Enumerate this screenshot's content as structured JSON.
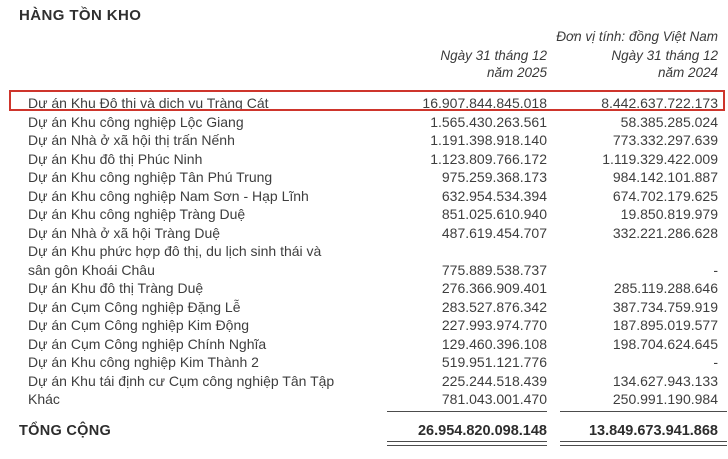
{
  "title": "HÀNG TỒN KHO",
  "unit_note": "Đơn vị tính: đồng Việt Nam",
  "columns": [
    {
      "line1": "Ngày 31 tháng 12",
      "line2": "năm 2025"
    },
    {
      "line1": "Ngày 31 tháng 12",
      "line2": "năm 2024"
    }
  ],
  "rows": [
    {
      "label": "Dự án Khu Đô thị và dịch vụ Tràng Cát",
      "v2025": "16.907.844.845.018",
      "v2024": "8.442.637.722.173",
      "highlighted": true
    },
    {
      "label": "Dự án Khu công nghiệp Lộc Giang",
      "v2025": "1.565.430.263.561",
      "v2024": "58.385.285.024"
    },
    {
      "label": "Dự án Nhà ở xã hội thị trấn Nếnh",
      "v2025": "1.191.398.918.140",
      "v2024": "773.332.297.639"
    },
    {
      "label": "Dự án Khu đô thị Phúc Ninh",
      "v2025": "1.123.809.766.172",
      "v2024": "1.119.329.422.009"
    },
    {
      "label": "Dự án Khu công nghiệp Tân Phú Trung",
      "v2025": "975.259.368.173",
      "v2024": "984.142.101.887"
    },
    {
      "label": "Dự án Khu công nghiệp Nam Sơn - Hạp Lĩnh",
      "v2025": "632.954.534.394",
      "v2024": "674.702.179.625"
    },
    {
      "label": "Dự án Khu công nghiệp Tràng Duệ",
      "v2025": "851.025.610.940",
      "v2024": "19.850.819.979"
    },
    {
      "label": "Dự án Nhà ở xã hội Tràng Duệ",
      "v2025": "487.619.454.707",
      "v2024": "332.221.286.628"
    },
    {
      "label": "Dự án Khu phức hợp đô thị, du lịch sinh thái và\nsân gôn Khoái Châu",
      "v2025": "775.889.538.737",
      "v2024": "-"
    },
    {
      "label": "Dự án Khu đô thị Tràng Duệ",
      "v2025": "276.366.909.401",
      "v2024": "285.119.288.646"
    },
    {
      "label": "Dự án Cụm Công nghiệp Đặng Lễ",
      "v2025": "283.527.876.342",
      "v2024": "387.734.759.919"
    },
    {
      "label": "Dự án Cụm Công nghiệp Kim Động",
      "v2025": "227.993.974.770",
      "v2024": "187.895.019.577"
    },
    {
      "label": "Dự án Cụm Công nghiệp Chính Nghĩa",
      "v2025": "129.460.396.108",
      "v2024": "198.704.624.645"
    },
    {
      "label": "Dự án Khu công nghiệp Kim Thành 2",
      "v2025": "519.951.121.776",
      "v2024": "-"
    },
    {
      "label": "Dự án Khu tái định cư Cụm công nghiệp Tân Tập",
      "v2025": "225.244.518.439",
      "v2024": "134.627.943.133"
    },
    {
      "label": "Khác",
      "v2025": "781.043.001.470",
      "v2024": "250.991.190.984"
    }
  ],
  "total": {
    "label": "TỔNG CỘNG",
    "v2025": "26.954.820.098.148",
    "v2024": "13.849.673.941.868"
  },
  "colors": {
    "highlight": "#ce352c",
    "text": "#3e3e3e",
    "rule": "#4c4c4c"
  }
}
